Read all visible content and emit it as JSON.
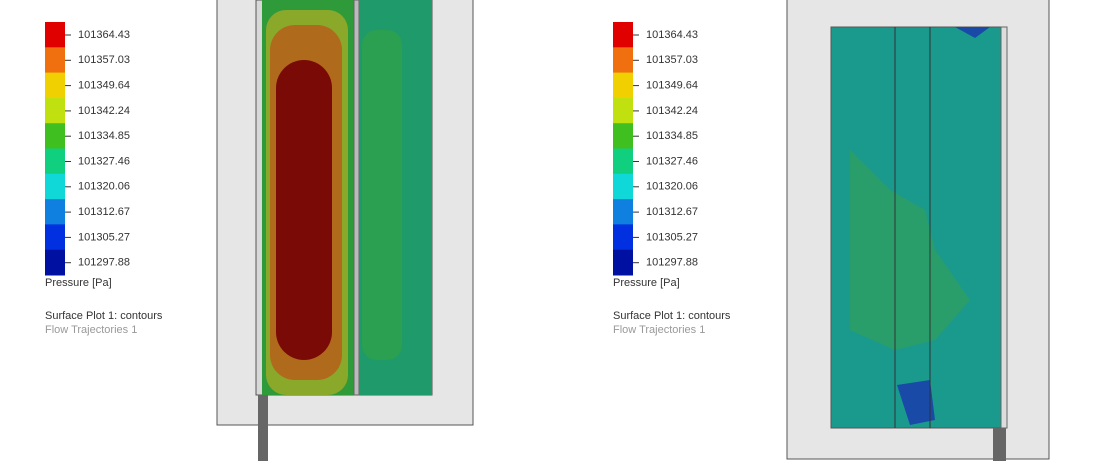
{
  "panels": [
    {
      "legend": {
        "ticks": [
          "101364.43",
          "101357.03",
          "101349.64",
          "101342.24",
          "101334.85",
          "101327.46",
          "101320.06",
          "101312.67",
          "101305.27",
          "101297.88"
        ],
        "quantity": "Pressure [Pa]"
      },
      "plot_name": "Surface Plot 1: contours",
      "trajectories": "Flow Trajectories 1"
    },
    {
      "legend": {
        "ticks": [
          "101364.43",
          "101357.03",
          "101349.64",
          "101342.24",
          "101334.85",
          "101327.46",
          "101320.06",
          "101312.67",
          "101305.27",
          "101297.88"
        ],
        "quantity": "Pressure [Pa]"
      },
      "plot_name": "Surface Plot 1: contours",
      "trajectories": "Flow Trajectories 1"
    }
  ]
}
